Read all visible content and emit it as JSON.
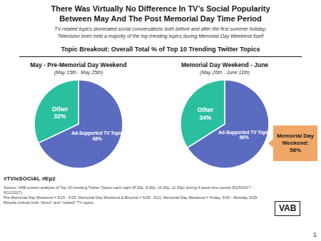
{
  "title": "There Was Virtually No Difference In TV’s Social Popularity\nBetween May And The Post Memorial Day Time Period",
  "subtitle": "TV-related topics dominated social conversations both before and after the first summer holiday;\nTelevision even held a majority of the top trending topics during Memorial Day Weekend itself",
  "annotations": [
    {
      "text": "Topic Breakout: Overall Total % of Top 10 Trending Twitter Topics"
    },
    {
      "text": "Memorial Day\nWeekend:\n58%",
      "color": "#f0a868"
    },
    {
      "text": "#TVIsSOCIAL #Ep2"
    },
    {
      "text": "Source: VAB custom analysis of Top 10 trending Twitter Topics each night (8:30p, 9:30p, 10:30p, 11:30p) during 4 week time period (5/15/2017 - 6/11/2017).\nPre-Memorial Day Weekend = 5/15 - 5/25; Memorial Day Weekend & Beyond = 5/26 - 6/11; Memorial Day Weekend = Friday, 5/26 - Monday, 5/29.\nResults include both \"direct\" and \"related\" TV topics."
    },
    {
      "text": "VAB"
    },
    {
      "text": "1"
    }
  ],
  "chart_data": [
    {
      "type": "pie",
      "title": "May - Pre-Memorial Day Weekend",
      "subtitle": "(May 15th - May 25th)",
      "categories": [
        "Ad-Supported TV Topic",
        "Other"
      ],
      "values": [
        68,
        32
      ],
      "value_labels": [
        "68%",
        "32%"
      ],
      "colors": [
        "#5b6bbf",
        "#2abf9e"
      ],
      "data_labels": true
    },
    {
      "type": "pie",
      "title": "Memorial Day Weekend - June",
      "subtitle": "(May 26th - June 11th)",
      "categories": [
        "Ad-Supported TV Topic",
        "Other"
      ],
      "values": [
        66,
        34
      ],
      "value_labels": [
        "66%",
        "34%"
      ],
      "colors": [
        "#5b6bbf",
        "#2abf9e"
      ],
      "data_labels": true
    }
  ]
}
